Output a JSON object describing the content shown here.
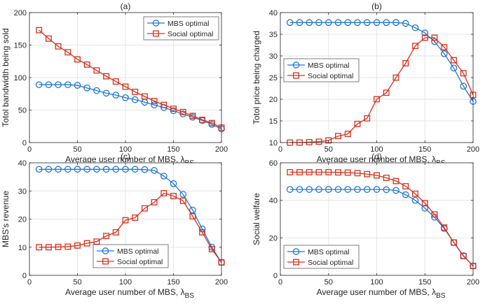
{
  "colors": {
    "mbs": "#1f77d4",
    "social": "#d9301c",
    "axis": "#262626",
    "grid": "#e6e6e6"
  },
  "chart_data": [
    {
      "type": "line",
      "panel": "(a)",
      "title": "(a)",
      "xlabel": "Average user number of MBS,",
      "xlabel_symbol": "λ",
      "xlabel_sub": "BS",
      "ylabel": "Totol bandwidth being sold",
      "xlim": [
        0,
        200
      ],
      "ylim": [
        0,
        200
      ],
      "xticks": [
        0,
        50,
        100,
        150,
        200
      ],
      "yticks": [
        0,
        50,
        100,
        150,
        200
      ],
      "legend": "top-right",
      "x": [
        10,
        20,
        30,
        40,
        50,
        60,
        70,
        80,
        90,
        100,
        110,
        120,
        130,
        140,
        150,
        160,
        170,
        180,
        190,
        200
      ],
      "series": [
        {
          "name": "MBS optimal",
          "marker": "circle",
          "values": [
            89,
            89,
            89,
            89,
            88,
            84,
            80,
            76,
            73,
            69,
            66,
            62,
            58,
            54,
            49,
            44,
            39,
            34,
            28,
            21
          ]
        },
        {
          "name": "Social optimal",
          "marker": "square",
          "values": [
            173,
            160,
            148,
            139,
            128,
            120,
            111,
            102,
            94,
            86,
            78,
            71,
            64,
            58,
            52,
            47,
            41,
            35,
            30,
            23
          ]
        }
      ]
    },
    {
      "type": "line",
      "panel": "(b)",
      "title": "(b)",
      "xlabel": "Average user number of MBS,",
      "xlabel_symbol": "λ",
      "xlabel_sub": "BS",
      "ylabel": "Totol price being charged",
      "xlim": [
        0,
        200
      ],
      "ylim": [
        10,
        40
      ],
      "xticks": [
        0,
        50,
        100,
        150,
        200
      ],
      "yticks": [
        10,
        15,
        20,
        25,
        30,
        35,
        40
      ],
      "legend": "middle-left",
      "x": [
        10,
        20,
        30,
        40,
        50,
        60,
        70,
        80,
        90,
        100,
        110,
        120,
        130,
        140,
        150,
        160,
        170,
        180,
        190,
        200
      ],
      "series": [
        {
          "name": "MBS optimal",
          "marker": "circle",
          "values": [
            37.7,
            37.7,
            37.7,
            37.7,
            37.7,
            37.7,
            37.7,
            37.7,
            37.7,
            37.7,
            37.7,
            37.7,
            37.5,
            36.5,
            35.3,
            33.3,
            30.5,
            27.2,
            23.0,
            19.5
          ]
        },
        {
          "name": "Social optimal",
          "marker": "square",
          "values": [
            10.0,
            10.0,
            10.1,
            10.2,
            10.5,
            11.5,
            12.0,
            14.3,
            15.6,
            20.0,
            21.5,
            25.0,
            28.3,
            32.3,
            34.2,
            34.2,
            32.0,
            29.0,
            26.0,
            21.0
          ]
        }
      ]
    },
    {
      "type": "line",
      "panel": "(c)",
      "title": "(c)",
      "xlabel": "Average user number of MBS,",
      "xlabel_symbol": "λ",
      "xlabel_sub": "BS",
      "ylabel": "MBS's revenue",
      "xlim": [
        0,
        200
      ],
      "ylim": [
        0,
        40
      ],
      "xticks": [
        0,
        50,
        100,
        150,
        200
      ],
      "yticks": [
        0,
        10,
        20,
        30,
        40
      ],
      "legend": "bottom-center",
      "x": [
        10,
        20,
        30,
        40,
        50,
        60,
        70,
        80,
        90,
        100,
        110,
        120,
        130,
        140,
        150,
        160,
        170,
        180,
        190,
        200
      ],
      "series": [
        {
          "name": "MBS optimal",
          "marker": "circle",
          "values": [
            37.7,
            37.7,
            37.7,
            37.7,
            37.7,
            37.7,
            37.7,
            37.7,
            37.7,
            37.7,
            37.7,
            37.6,
            37.3,
            35.3,
            32.6,
            28.8,
            23.2,
            16.5,
            10.0,
            4.6
          ]
        },
        {
          "name": "Social optimal",
          "marker": "square",
          "values": [
            10.0,
            10.0,
            10.1,
            10.2,
            10.6,
            11.4,
            12.0,
            14.0,
            15.3,
            19.6,
            20.5,
            23.8,
            26.0,
            29.2,
            28.2,
            26.5,
            21.0,
            15.3,
            9.3,
            4.6
          ]
        }
      ]
    },
    {
      "type": "line",
      "panel": "(d)",
      "title": "(d)",
      "xlabel": "Average user number of MBS,",
      "xlabel_symbol": "λ",
      "xlabel_sub": "BS",
      "ylabel": "Social welfare",
      "xlim": [
        0,
        200
      ],
      "ylim": [
        0,
        60
      ],
      "xticks": [
        0,
        50,
        100,
        150,
        200
      ],
      "yticks": [
        0,
        20,
        40,
        60
      ],
      "legend": "bottom-left",
      "x": [
        10,
        20,
        30,
        40,
        50,
        60,
        70,
        80,
        90,
        100,
        110,
        120,
        130,
        140,
        150,
        160,
        170,
        180,
        190,
        200
      ],
      "series": [
        {
          "name": "MBS optimal",
          "marker": "circle",
          "values": [
            45.8,
            45.8,
            45.8,
            45.8,
            45.8,
            45.8,
            45.8,
            45.8,
            45.8,
            45.8,
            45.7,
            45.3,
            43.0,
            40.0,
            35.8,
            31.0,
            25.0,
            17.5,
            10.5,
            5.0
          ]
        },
        {
          "name": "Social optimal",
          "marker": "square",
          "values": [
            55.0,
            55.0,
            55.0,
            55.0,
            55.0,
            54.9,
            54.8,
            54.5,
            54.0,
            53.3,
            52.0,
            50.3,
            47.5,
            43.5,
            38.5,
            32.5,
            25.5,
            17.5,
            10.3,
            5.0
          ]
        }
      ]
    }
  ]
}
